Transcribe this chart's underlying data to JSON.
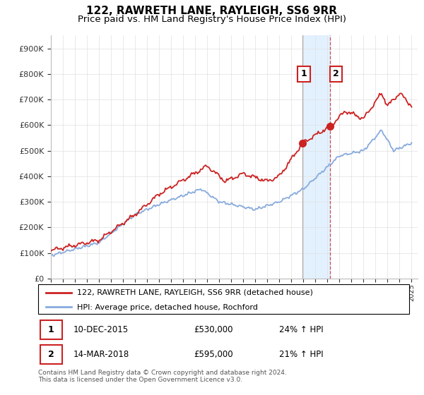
{
  "title": "122, RAWRETH LANE, RAYLEIGH, SS6 9RR",
  "subtitle": "Price paid vs. HM Land Registry's House Price Index (HPI)",
  "ylim": [
    0,
    950000
  ],
  "yticks": [
    0,
    100000,
    200000,
    300000,
    400000,
    500000,
    600000,
    700000,
    800000,
    900000
  ],
  "ytick_labels": [
    "£0",
    "£100K",
    "£200K",
    "£300K",
    "£400K",
    "£500K",
    "£600K",
    "£700K",
    "£800K",
    "£900K"
  ],
  "background_color": "#ffffff",
  "grid_color": "#e0e0e0",
  "red_color": "#cc2222",
  "blue_color": "#88aadd",
  "sale1_date": 2015.94,
  "sale1_price": 530000,
  "sale2_date": 2018.21,
  "sale2_price": 595000,
  "shade_color": "#ddeeff",
  "legend_label_red": "122, RAWRETH LANE, RAYLEIGH, SS6 9RR (detached house)",
  "legend_label_blue": "HPI: Average price, detached house, Rochford",
  "footnote": "Contains HM Land Registry data © Crown copyright and database right 2024.\nThis data is licensed under the Open Government Licence v3.0.",
  "title_fontsize": 11,
  "subtitle_fontsize": 9.5
}
